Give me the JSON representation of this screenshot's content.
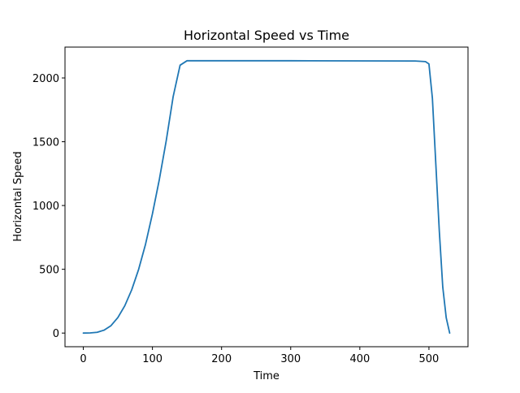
{
  "chart_data": {
    "type": "line",
    "title": "Horizontal Speed vs Time",
    "xlabel": "Time",
    "ylabel": "Horizontal Speed",
    "xlim": [
      -26.5,
      556.5
    ],
    "ylim": [
      -107,
      2242
    ],
    "xticks": [
      0,
      100,
      200,
      300,
      400,
      500
    ],
    "yticks": [
      0,
      500,
      1000,
      1500,
      2000
    ],
    "xtick_labels": [
      "0",
      "100",
      "200",
      "300",
      "400",
      "500"
    ],
    "ytick_labels": [
      "0",
      "500",
      "1000",
      "1500",
      "2000"
    ],
    "grid": false,
    "legend": "none",
    "series": [
      {
        "color": "#1f77b4",
        "x": [
          0,
          10,
          20,
          30,
          40,
          50,
          60,
          70,
          80,
          90,
          100,
          110,
          120,
          130,
          140,
          150,
          151,
          200,
          300,
          400,
          480,
          490,
          495,
          500,
          505,
          510,
          515,
          520,
          525,
          530
        ],
        "y": [
          0,
          1,
          6,
          23,
          58,
          122,
          214,
          339,
          499,
          696,
          935,
          1205,
          1510,
          1855,
          2100,
          2135,
          2135,
          2135,
          2135,
          2134,
          2133,
          2130,
          2128,
          2110,
          1840,
          1320,
          800,
          360,
          120,
          0
        ]
      }
    ]
  }
}
